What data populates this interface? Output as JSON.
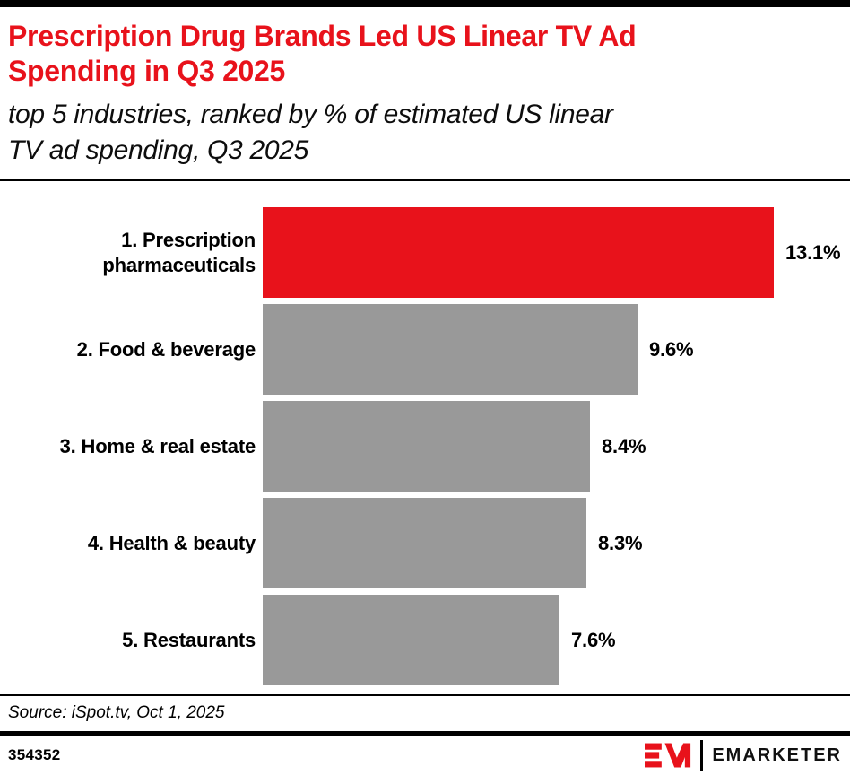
{
  "header": {
    "title": "Prescription Drug Brands Led US Linear TV Ad Spending in Q3 2025",
    "title_lines": [
      "Prescription Drug Brands Led US Linear TV Ad",
      "Spending in Q3 2025"
    ],
    "subtitle": "top 5 industries, ranked by % of estimated US linear TV ad spending, Q3 2025",
    "subtitle_lines": [
      "top 5 industries, ranked by % of estimated US linear",
      "TV ad spending, Q3 2025"
    ]
  },
  "chart_data": {
    "type": "bar",
    "orientation": "horizontal",
    "title": "Prescription Drug Brands Led US Linear TV Ad Spending in Q3 2025",
    "subtitle": "top 5 industries, ranked by % of estimated US linear TV ad spending, Q3 2025",
    "categories": [
      "1. Prescription pharmaceuticals",
      "2. Food & beverage",
      "3. Home & real estate",
      "4. Health & beauty",
      "5. Restaurants"
    ],
    "values": [
      13.1,
      9.6,
      8.4,
      8.3,
      7.6
    ],
    "value_labels": [
      "13.1%",
      "9.6%",
      "8.4%",
      "8.3%",
      "7.6%"
    ],
    "bar_colors": [
      "#E8121B",
      "#999999",
      "#999999",
      "#999999",
      "#999999"
    ],
    "xlabel": "",
    "ylabel": "",
    "xlim": [
      0,
      13.1
    ],
    "grid": false,
    "data_label_position": "outside-end",
    "highlight_category": "1. Prescription pharmaceuticals"
  },
  "colors": {
    "accent_red": "#E8121B",
    "bar_gray": "#999999",
    "text_black": "#000000"
  },
  "footer": {
    "source": "Source: iSpot.tv, Oct 1, 2025",
    "chart_id": "354352",
    "brand_name": "EMARKETER",
    "logo_mark": "EM-monogram"
  }
}
